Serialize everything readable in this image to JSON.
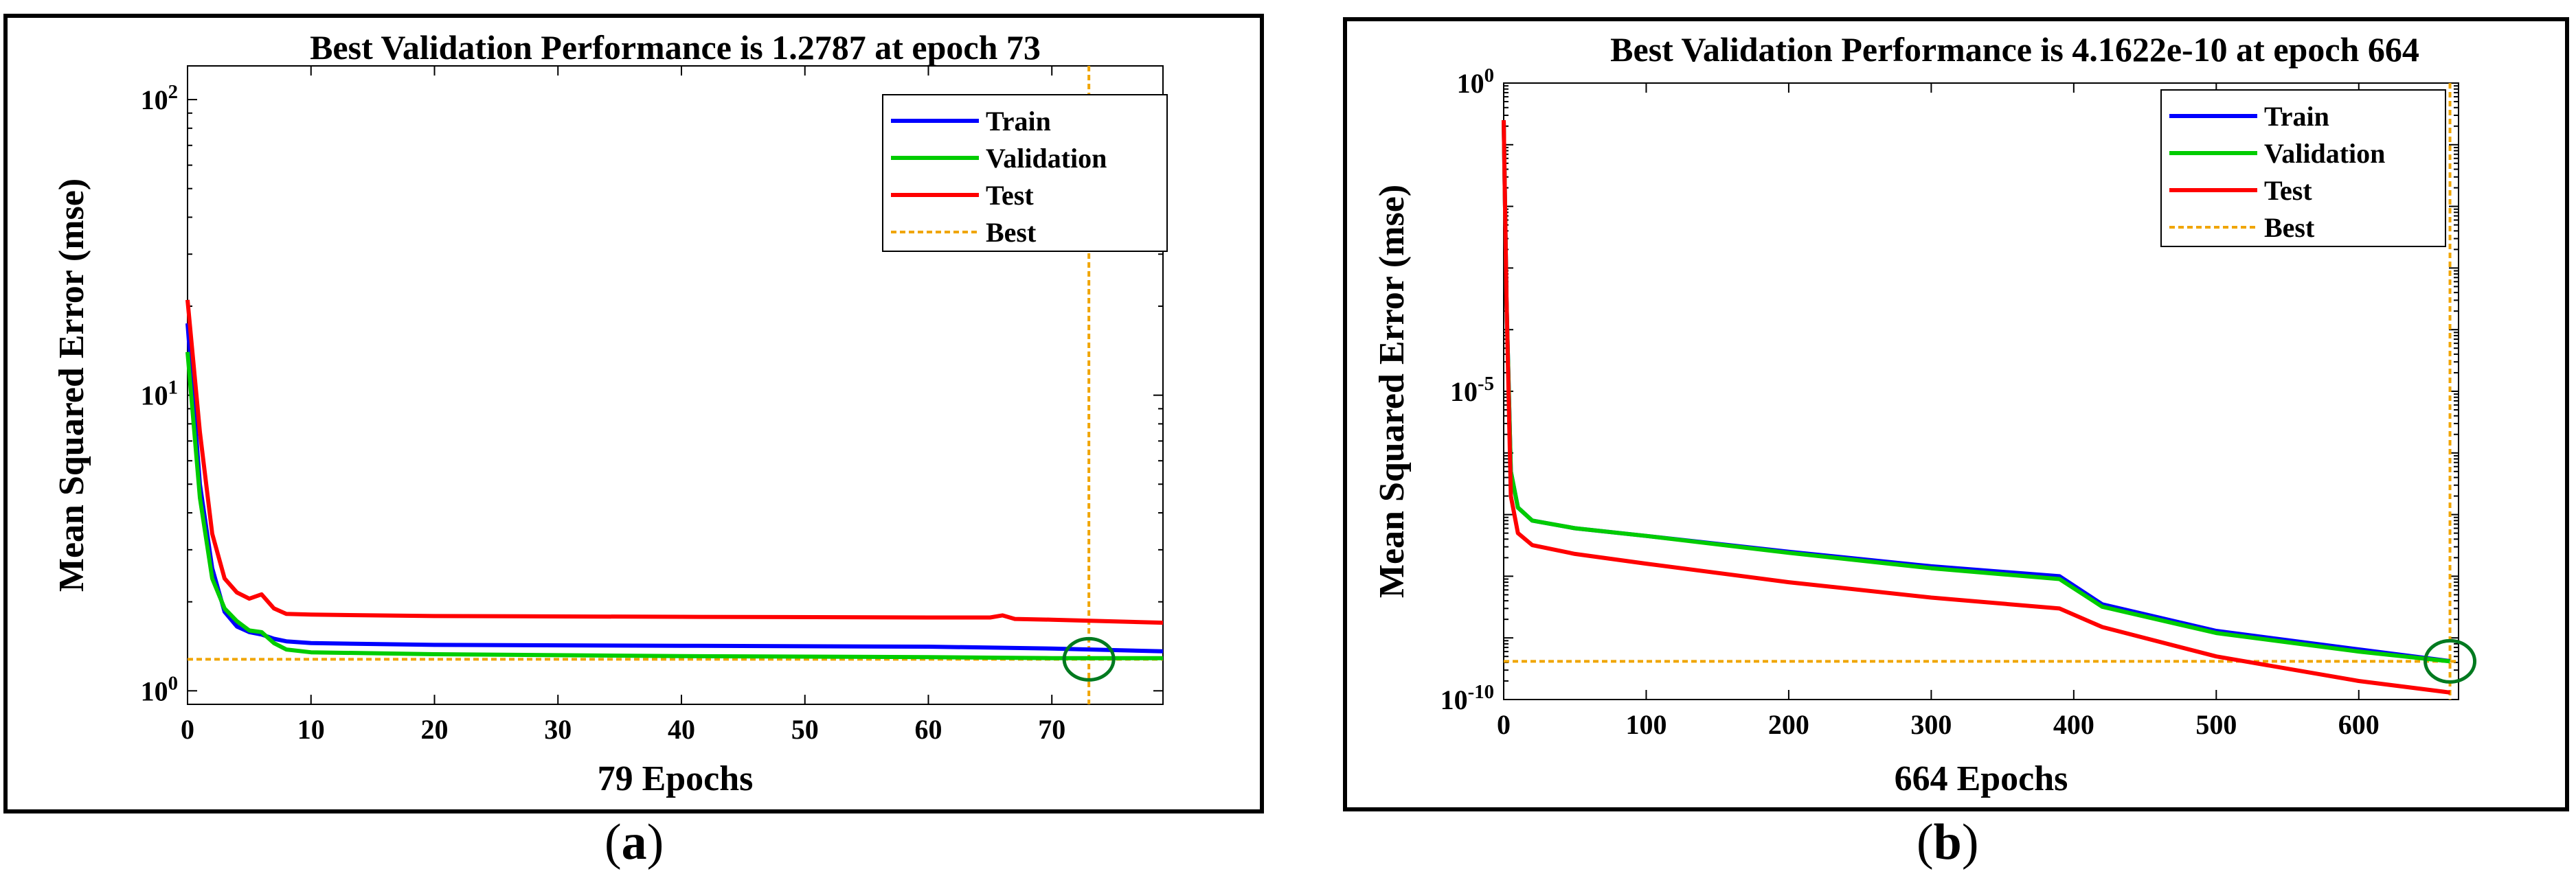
{
  "chart_data": [
    {
      "id": "a",
      "type": "line",
      "title": "Best Validation Performance is 1.2787 at epoch 73",
      "xlabel": "79 Epochs",
      "ylabel": "Mean Squared Error  (mse)",
      "yscale": "log",
      "xlim": [
        0,
        79
      ],
      "ylim": [
        0.9,
        130
      ],
      "xticks": [
        0,
        10,
        20,
        30,
        40,
        50,
        60,
        70
      ],
      "yticks": [
        {
          "value": 1,
          "base": "10",
          "exp": "0"
        },
        {
          "value": 10,
          "base": "10",
          "exp": "1"
        },
        {
          "value": 100,
          "base": "10",
          "exp": "2"
        }
      ],
      "best": {
        "epoch": 73,
        "value": 1.2787
      },
      "legend": [
        "Train",
        "Validation",
        "Test",
        "Best"
      ],
      "legend_position": "top-right",
      "series": [
        {
          "name": "Train",
          "color": "#0000ff",
          "x": [
            0,
            1,
            2,
            3,
            4,
            5,
            6,
            7,
            8,
            10,
            20,
            40,
            60,
            70,
            79
          ],
          "y": [
            17.5,
            5.0,
            2.6,
            1.85,
            1.65,
            1.58,
            1.55,
            1.5,
            1.47,
            1.45,
            1.43,
            1.42,
            1.41,
            1.39,
            1.36
          ]
        },
        {
          "name": "Validation",
          "color": "#00cc00",
          "x": [
            0,
            1,
            2,
            3,
            4,
            5,
            6,
            7,
            8,
            10,
            20,
            40,
            60,
            70,
            79
          ],
          "y": [
            14.0,
            4.5,
            2.4,
            1.9,
            1.72,
            1.6,
            1.58,
            1.45,
            1.38,
            1.35,
            1.33,
            1.31,
            1.3,
            1.29,
            1.29
          ]
        },
        {
          "name": "Test",
          "color": "#ff0000",
          "x": [
            0,
            1,
            2,
            3,
            4,
            5,
            6,
            7,
            8,
            10,
            20,
            40,
            60,
            65,
            66,
            67,
            70,
            79
          ],
          "y": [
            21.0,
            7.5,
            3.4,
            2.4,
            2.15,
            2.05,
            2.12,
            1.9,
            1.82,
            1.81,
            1.79,
            1.78,
            1.77,
            1.77,
            1.8,
            1.75,
            1.74,
            1.7
          ]
        }
      ]
    },
    {
      "id": "b",
      "type": "line",
      "title": "Best Validation Performance is 4.1622e-10 at epoch 664",
      "xlabel": "664 Epochs",
      "ylabel": "Mean Squared Error  (mse)",
      "yscale": "log",
      "xlim": [
        0,
        670
      ],
      "ylim": [
        1e-10,
        1
      ],
      "xticks": [
        0,
        100,
        200,
        300,
        400,
        500,
        600
      ],
      "yticks": [
        {
          "value": 1e-10,
          "base": "10",
          "exp": "-10"
        },
        {
          "value": 1e-05,
          "base": "10",
          "exp": "-5"
        },
        {
          "value": 1,
          "base": "10",
          "exp": "0"
        }
      ],
      "best": {
        "epoch": 664,
        "value": 4.1622e-10
      },
      "legend": [
        "Train",
        "Validation",
        "Test",
        "Best"
      ],
      "legend_position": "top-right",
      "series": [
        {
          "name": "Train",
          "color": "#0000ff",
          "x": [
            0,
            2,
            5,
            10,
            20,
            50,
            100,
            200,
            300,
            390,
            420,
            500,
            600,
            664
          ],
          "y": [
            0.25,
            0.0003,
            5e-07,
            1.3e-07,
            8e-08,
            6e-08,
            4.5e-08,
            2.5e-08,
            1.45e-08,
            1e-08,
            3.5e-09,
            1.3e-09,
            6.5e-10,
            4.2e-10
          ]
        },
        {
          "name": "Validation",
          "color": "#00cc00",
          "x": [
            0,
            2,
            5,
            10,
            20,
            50,
            100,
            200,
            300,
            390,
            420,
            500,
            600,
            664
          ],
          "y": [
            0.25,
            0.0003,
            5e-07,
            1.3e-07,
            8e-08,
            6e-08,
            4.5e-08,
            2.4e-08,
            1.35e-08,
            9e-09,
            3.2e-09,
            1.2e-09,
            6e-10,
            4.16e-10
          ]
        },
        {
          "name": "Test",
          "color": "#ff0000",
          "x": [
            0,
            2,
            5,
            10,
            20,
            50,
            100,
            200,
            300,
            390,
            420,
            500,
            600,
            664
          ],
          "y": [
            0.25,
            0.0003,
            2e-07,
            5e-08,
            3.2e-08,
            2.3e-08,
            1.6e-08,
            8e-09,
            4.5e-09,
            3e-09,
            1.5e-09,
            5e-10,
            2e-10,
            1.3e-10
          ]
        }
      ]
    }
  ],
  "captions": {
    "a": {
      "open": "(",
      "letter": "a",
      "close": ")"
    },
    "b": {
      "open": "(",
      "letter": "b",
      "close": ")"
    }
  }
}
